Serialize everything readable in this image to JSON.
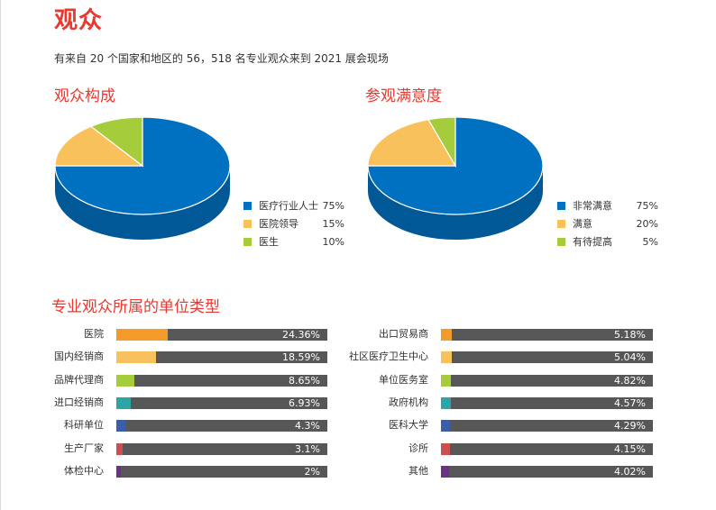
{
  "page": {
    "title": "观众",
    "intro": "有来自 20 个国家和地区的 56，518 名专业观众来到 2021 展会现场"
  },
  "colors": {
    "title_red": "#e8382f",
    "blue": "#0071c1",
    "yellow": "#f9c15c",
    "green": "#a5cc3b",
    "orange": "#f39a2b",
    "teal": "#2aa6a4",
    "indigo": "#3a5ea7",
    "red": "#c9504f",
    "purple": "#6c2f8a",
    "track_gray": "#575757"
  },
  "chart_data": [
    {
      "type": "pie",
      "title": "观众构成",
      "categories": [
        "医疗行业人士",
        "医院领导",
        "医生"
      ],
      "values": [
        75,
        15,
        10
      ],
      "value_labels": [
        "75%",
        "15%",
        "10%"
      ],
      "colors": [
        "#0071c1",
        "#f9c15c",
        "#a5cc3b"
      ],
      "legend": "right"
    },
    {
      "type": "pie",
      "title": "参观满意度",
      "categories": [
        "非常满意",
        "满意",
        "有待提高"
      ],
      "values": [
        75,
        20,
        5
      ],
      "value_labels": [
        "75%",
        "20%",
        "5%"
      ],
      "colors": [
        "#0071c1",
        "#f9c15c",
        "#a5cc3b"
      ],
      "legend": "right"
    },
    {
      "type": "bar",
      "title": "专业观众所属的单位类型",
      "unit": "%",
      "max_value": 100,
      "series": [
        {
          "categories": [
            "医院",
            "国内经销商",
            "品牌代理商",
            "进口经销商",
            "科研单位",
            "生产厂家",
            "体检中心"
          ],
          "values": [
            24.36,
            18.59,
            8.65,
            6.93,
            4.3,
            3.1,
            2
          ],
          "value_labels": [
            "24.36%",
            "18.59%",
            "8.65%",
            "6.93%",
            "4.3%",
            "3.1%",
            "2%"
          ],
          "colors": [
            "#f39a2b",
            "#f9c15c",
            "#a5cc3b",
            "#2aa6a4",
            "#3a5ea7",
            "#c9504f",
            "#6c2f8a"
          ]
        },
        {
          "categories": [
            "出口贸易商",
            "社区医疗卫生中心",
            "单位医务室",
            "政府机构",
            "医科大学",
            "诊所",
            "其他"
          ],
          "values": [
            5.18,
            5.04,
            4.82,
            4.57,
            4.29,
            4.15,
            4.02
          ],
          "value_labels": [
            "5.18%",
            "5.04%",
            "4.82%",
            "4.57%",
            "4.29%",
            "4.15%",
            "4.02%"
          ],
          "colors": [
            "#f39a2b",
            "#f9c15c",
            "#a5cc3b",
            "#2aa6a4",
            "#3a5ea7",
            "#c9504f",
            "#6c2f8a"
          ]
        }
      ]
    }
  ]
}
